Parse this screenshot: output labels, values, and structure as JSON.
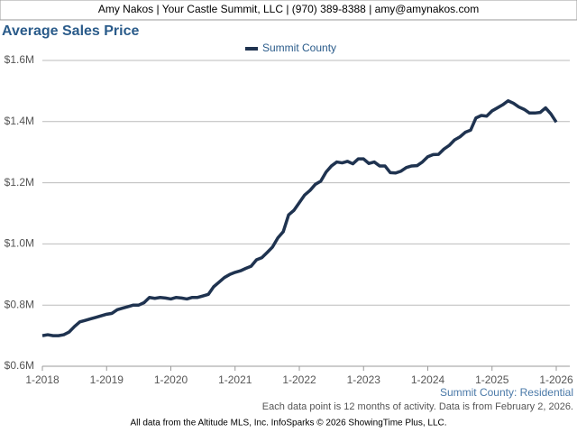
{
  "header": "Amy Nakos | Your Castle Summit, LLC | (970) 389-8388 | amy@amynakos.com",
  "chart_data": {
    "type": "line",
    "title": "Average Sales Price",
    "categories": [
      "1-2018",
      null,
      null,
      null,
      null,
      null,
      null,
      null,
      null,
      null,
      null,
      null,
      "1-2019",
      null,
      null,
      null,
      null,
      null,
      null,
      null,
      null,
      null,
      null,
      null,
      "1-2020",
      null,
      null,
      null,
      null,
      null,
      null,
      null,
      null,
      null,
      null,
      null,
      "1-2021",
      null,
      null,
      null,
      null,
      null,
      null,
      null,
      null,
      null,
      null,
      null,
      "1-2022",
      null,
      null,
      null,
      null,
      null,
      null,
      null,
      null,
      null,
      null,
      null,
      "1-2023",
      null,
      null,
      null,
      null,
      null,
      null,
      null,
      null,
      null,
      null,
      null,
      "1-2024",
      null,
      null,
      null,
      null,
      null,
      null,
      null,
      null,
      null,
      null,
      null,
      "1-2025",
      null,
      null,
      null,
      null,
      null,
      null,
      null,
      null,
      null,
      null,
      null,
      "1-2026"
    ],
    "series": [
      {
        "name": "Summit County",
        "color": "#1f3350",
        "values": [
          700000,
          703000,
          700000,
          700000,
          703000,
          712000,
          730000,
          745000,
          750000,
          755000,
          760000,
          765000,
          770000,
          773000,
          785000,
          790000,
          795000,
          800000,
          800000,
          808000,
          825000,
          822000,
          825000,
          823000,
          820000,
          825000,
          823000,
          820000,
          825000,
          825000,
          830000,
          835000,
          860000,
          875000,
          890000,
          900000,
          907000,
          912000,
          920000,
          927000,
          948000,
          955000,
          972000,
          990000,
          1020000,
          1040000,
          1095000,
          1110000,
          1135000,
          1160000,
          1175000,
          1195000,
          1205000,
          1235000,
          1255000,
          1268000,
          1265000,
          1270000,
          1262000,
          1278000,
          1278000,
          1263000,
          1268000,
          1255000,
          1255000,
          1233000,
          1232000,
          1238000,
          1250000,
          1255000,
          1256000,
          1268000,
          1285000,
          1292000,
          1293000,
          1310000,
          1322000,
          1340000,
          1350000,
          1365000,
          1372000,
          1412000,
          1420000,
          1418000,
          1435000,
          1445000,
          1455000,
          1468000,
          1460000,
          1448000,
          1440000,
          1428000,
          1428000,
          1430000,
          1445000,
          1425000,
          1398000
        ]
      }
    ],
    "ylim": [
      600000,
      1600000
    ],
    "yticks": [
      {
        "value": 600000,
        "label": "$0.6M"
      },
      {
        "value": 800000,
        "label": "$0.8M"
      },
      {
        "value": 1000000,
        "label": "$1.0M"
      },
      {
        "value": 1200000,
        "label": "$1.2M"
      },
      {
        "value": 1400000,
        "label": "$1.4M"
      },
      {
        "value": 1600000,
        "label": "$1.6M"
      }
    ],
    "grid": true,
    "legend": "top",
    "subtitle": "Summit County: Residential",
    "note": "Each data point is 12 months of activity. Data is from February 2, 2026."
  },
  "footer": "All data from the Altitude MLS, Inc. InfoSparks © 2026 ShowingTime Plus, LLC."
}
